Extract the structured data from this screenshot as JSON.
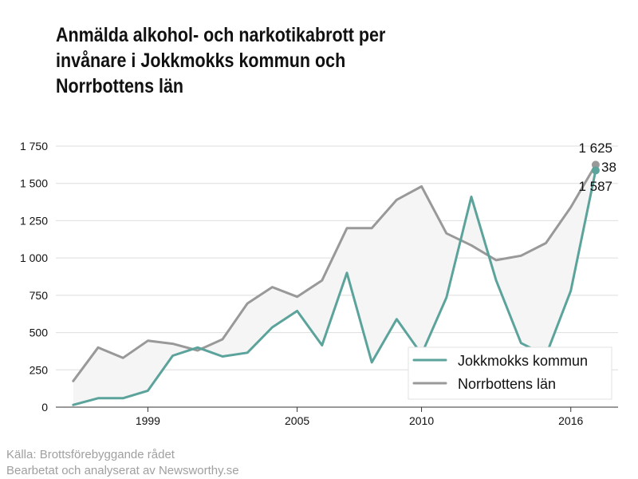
{
  "title": "Anmälda alkohol- och narkotikabrott per invånare i Jokkmokks kommun och Norrbottens län",
  "footer": {
    "source": "Källa: Brottsförebyggande rådet",
    "credit": "Bearbetat och analyserat av Newsworthy.se"
  },
  "chart_data": {
    "type": "line",
    "title": "Anmälda alkohol- och narkotikabrott per invånare i Jokkmokks kommun och Norrbottens län",
    "x": [
      1996,
      1997,
      1998,
      1999,
      2000,
      2001,
      2002,
      2003,
      2004,
      2005,
      2006,
      2007,
      2008,
      2009,
      2010,
      2011,
      2012,
      2013,
      2014,
      2015,
      2016,
      2017
    ],
    "xlim": [
      1995.3,
      2017.9
    ],
    "x_ticks": [
      1999,
      2005,
      2010,
      2016
    ],
    "x_tick_labels": [
      "1999",
      "2005",
      "2010",
      "2016"
    ],
    "ylim": [
      0,
      1750
    ],
    "y_ticks": [
      0,
      250,
      500,
      750,
      1000,
      1250,
      1500,
      1750
    ],
    "y_tick_labels": [
      "0",
      "250",
      "500",
      "750",
      "1 000",
      "1 250",
      "1 500",
      "1 750"
    ],
    "grid": true,
    "legend_position": "bottom-right",
    "series": [
      {
        "name": "Jokkmokks kommun",
        "color": "#5ba39b",
        "values": [
          15,
          60,
          60,
          110,
          345,
          400,
          340,
          365,
          535,
          645,
          415,
          900,
          300,
          590,
          355,
          735,
          1410,
          850,
          430,
          345,
          780,
          1587
        ]
      },
      {
        "name": "Norrbottens län",
        "color": "#999999",
        "values": [
          175,
          400,
          330,
          445,
          425,
          380,
          455,
          695,
          805,
          740,
          850,
          1200,
          1200,
          1390,
          1480,
          1165,
          1085,
          985,
          1015,
          1100,
          1340,
          1625
        ]
      }
    ],
    "annotations": {
      "norrbotten_end": "1 625",
      "difference": "38",
      "jokkmokk_end": "1 587"
    }
  }
}
